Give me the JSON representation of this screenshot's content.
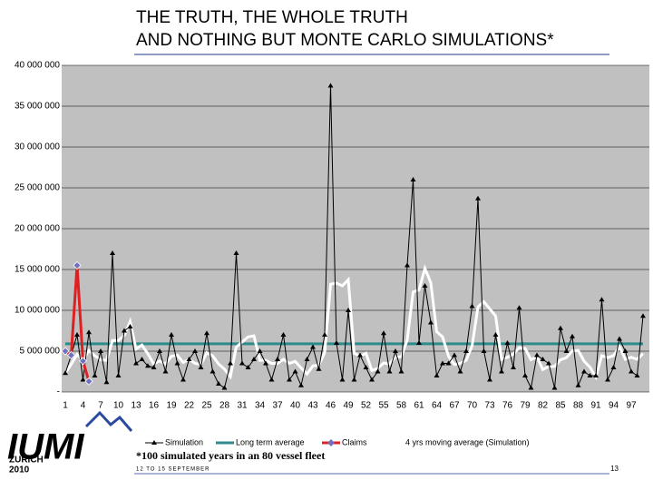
{
  "chart_data": {
    "type": "line",
    "title": [
      "THE TRUTH, THE WHOLE TRUTH",
      "AND NOTHING BUT MONTE CARLO SIMULATIONS*"
    ],
    "footnote": "*100 simulated years in an 80 vessel fleet",
    "categories": [
      "1",
      null,
      null,
      "4",
      null,
      null,
      "7",
      null,
      null,
      "10",
      null,
      null,
      "13",
      null,
      null,
      "16",
      null,
      null,
      "19",
      null,
      null,
      "22",
      null,
      null,
      "25",
      null,
      null,
      "28",
      null,
      null,
      "31",
      null,
      null,
      "34",
      null,
      null,
      "37",
      null,
      null,
      "40",
      null,
      null,
      "43",
      null,
      null,
      "46",
      null,
      null,
      "49",
      null,
      null,
      "52",
      null,
      null,
      "55",
      null,
      null,
      "58",
      null,
      null,
      "61",
      null,
      null,
      "64",
      null,
      null,
      "67",
      null,
      null,
      "70",
      null,
      null,
      "73",
      null,
      null,
      "76",
      null,
      null,
      "79",
      null,
      null,
      "82",
      null,
      null,
      "85",
      null,
      null,
      "88",
      null,
      null,
      "91",
      null,
      null,
      "94",
      null,
      null,
      "97",
      null,
      null
    ],
    "ylim": [
      0,
      40000000
    ],
    "yticks": [
      {
        "value": 0,
        "label": "-"
      },
      {
        "value": 5000000,
        "label": "5 000 000"
      },
      {
        "value": 10000000,
        "label": "10 000 000"
      },
      {
        "value": 15000000,
        "label": "15 000 000"
      },
      {
        "value": 20000000,
        "label": "20 000 000"
      },
      {
        "value": 25000000,
        "label": "25 000 000"
      },
      {
        "value": 30000000,
        "label": "30 000 000"
      },
      {
        "value": 35000000,
        "label": "35 000 000"
      },
      {
        "value": 40000000,
        "label": "40 000 000"
      }
    ],
    "grid": true,
    "legend": "bottom",
    "series": [
      {
        "name": "Simulation",
        "color": "#000000",
        "marker": "triangle",
        "values": [
          2300000,
          4500000,
          7000000,
          1500000,
          7300000,
          2000000,
          5000000,
          1200000,
          17000000,
          2000000,
          7500000,
          8000000,
          3500000,
          4000000,
          3200000,
          3000000,
          5000000,
          2500000,
          7000000,
          3500000,
          1500000,
          4000000,
          5000000,
          3000000,
          7200000,
          2500000,
          1000000,
          500000,
          3500000,
          17000000,
          3500000,
          3000000,
          4000000,
          5000000,
          3500000,
          1500000,
          4000000,
          7000000,
          1500000,
          2500000,
          800000,
          4000000,
          5500000,
          2800000,
          7000000,
          37500000,
          6000000,
          1500000,
          10000000,
          1500000,
          4500000,
          3000000,
          1500000,
          2500000,
          7200000,
          2500000,
          5000000,
          2500000,
          15500000,
          26000000,
          6000000,
          13000000,
          8500000,
          2000000,
          3500000,
          3500000,
          4500000,
          2500000,
          5000000,
          10500000,
          23700000,
          5000000,
          1500000,
          7000000,
          2500000,
          6000000,
          3000000,
          10300000,
          2000000,
          500000,
          4500000,
          4000000,
          3500000,
          500000,
          7800000,
          5000000,
          6800000,
          800000,
          2500000,
          2000000,
          2000000,
          11300000,
          1500000,
          3000000,
          6500000,
          5000000,
          2500000,
          2000000,
          9300000
        ]
      },
      {
        "name": "Long term average",
        "color": "#2e8b8b",
        "values": [
          5900000,
          5900000,
          5900000,
          5900000,
          5900000,
          5900000,
          5900000,
          5900000,
          5900000,
          5900000,
          5900000,
          5900000,
          5900000,
          5900000,
          5900000,
          5900000,
          5900000,
          5900000,
          5900000,
          5900000,
          5900000,
          5900000,
          5900000,
          5900000,
          5900000,
          5900000,
          5900000,
          5900000,
          5900000,
          5900000,
          5900000,
          5900000,
          5900000,
          5900000,
          5900000,
          5900000,
          5900000,
          5900000,
          5900000,
          5900000,
          5900000,
          5900000,
          5900000,
          5900000,
          5900000,
          5900000,
          5900000,
          5900000,
          5900000,
          5900000,
          5900000,
          5900000,
          5900000,
          5900000,
          5900000,
          5900000,
          5900000,
          5900000,
          5900000,
          5900000,
          5900000,
          5900000,
          5900000,
          5900000,
          5900000,
          5900000,
          5900000,
          5900000,
          5900000,
          5900000,
          5900000,
          5900000,
          5900000,
          5900000,
          5900000,
          5900000,
          5900000,
          5900000,
          5900000,
          5900000,
          5900000,
          5900000,
          5900000,
          5900000,
          5900000,
          5900000,
          5900000,
          5900000,
          5900000,
          5900000,
          5900000,
          5900000,
          5900000,
          5900000,
          5900000,
          5900000,
          5900000,
          5900000,
          5900000
        ]
      },
      {
        "name": "Claims",
        "color": "#e02020",
        "marker": "diamond",
        "marker_color": "#7070c0",
        "values": [
          5000000,
          4500000,
          15500000,
          3800000,
          1300000,
          null,
          null,
          null,
          null,
          null,
          null,
          null,
          null,
          null,
          null,
          null,
          null,
          null,
          null,
          null,
          null,
          null,
          null,
          null,
          null,
          null,
          null,
          null,
          null,
          null,
          null,
          null,
          null,
          null,
          null,
          null,
          null,
          null,
          null,
          null,
          null,
          null,
          null,
          null,
          null,
          null,
          null,
          null,
          null,
          null,
          null,
          null,
          null,
          null,
          null,
          null,
          null,
          null,
          null,
          null,
          null,
          null,
          null,
          null,
          null,
          null,
          null,
          null,
          null,
          null,
          null,
          null,
          null,
          null,
          null,
          null,
          null,
          null,
          null,
          null,
          null,
          null,
          null,
          null,
          null,
          null,
          null,
          null,
          null,
          null,
          null,
          null,
          null,
          null,
          null,
          null,
          null,
          null,
          null
        ]
      },
      {
        "name": "4 yrs moving average (Simulation)",
        "color": "#ffffff",
        "values": [
          2300000,
          3400000,
          4600000,
          3830000,
          5080000,
          4450000,
          3950000,
          3880000,
          6300000,
          6300000,
          6930000,
          8630000,
          5250000,
          5750000,
          4680000,
          3430000,
          3800000,
          3430000,
          4380000,
          4500000,
          3630000,
          4000000,
          3500000,
          3380000,
          4800000,
          4430000,
          3430000,
          2800000,
          1880000,
          5500000,
          6130000,
          6750000,
          6880000,
          3880000,
          3880000,
          3500000,
          3500000,
          4000000,
          3500000,
          3750000,
          2950000,
          2200000,
          3200000,
          3280000,
          4830000,
          13200000,
          13330000,
          13000000,
          13750000,
          4750000,
          4380000,
          4750000,
          2630000,
          2880000,
          3550000,
          3430000,
          4300000,
          4300000,
          6380000,
          12250000,
          12500000,
          15130000,
          13380000,
          7380000,
          6750000,
          4380000,
          3380000,
          3500000,
          3880000,
          5630000,
          10430000,
          11050000,
          10180000,
          9300000,
          4000000,
          4250000,
          4630000,
          5450000,
          5330000,
          3950000,
          4330000,
          2750000,
          3130000,
          3130000,
          3950000,
          4200000,
          5030000,
          5100000,
          3780000,
          3030000,
          1830000,
          4450000,
          4200000,
          4450000,
          5580000,
          4000000,
          4250000,
          4000000,
          4700000
        ]
      }
    ]
  },
  "logo": {
    "name": "IUMI",
    "city": "ZURICH",
    "year": "2010"
  },
  "footer": {
    "date": "12 TO 15 SEPTEMBER",
    "page": "13"
  }
}
